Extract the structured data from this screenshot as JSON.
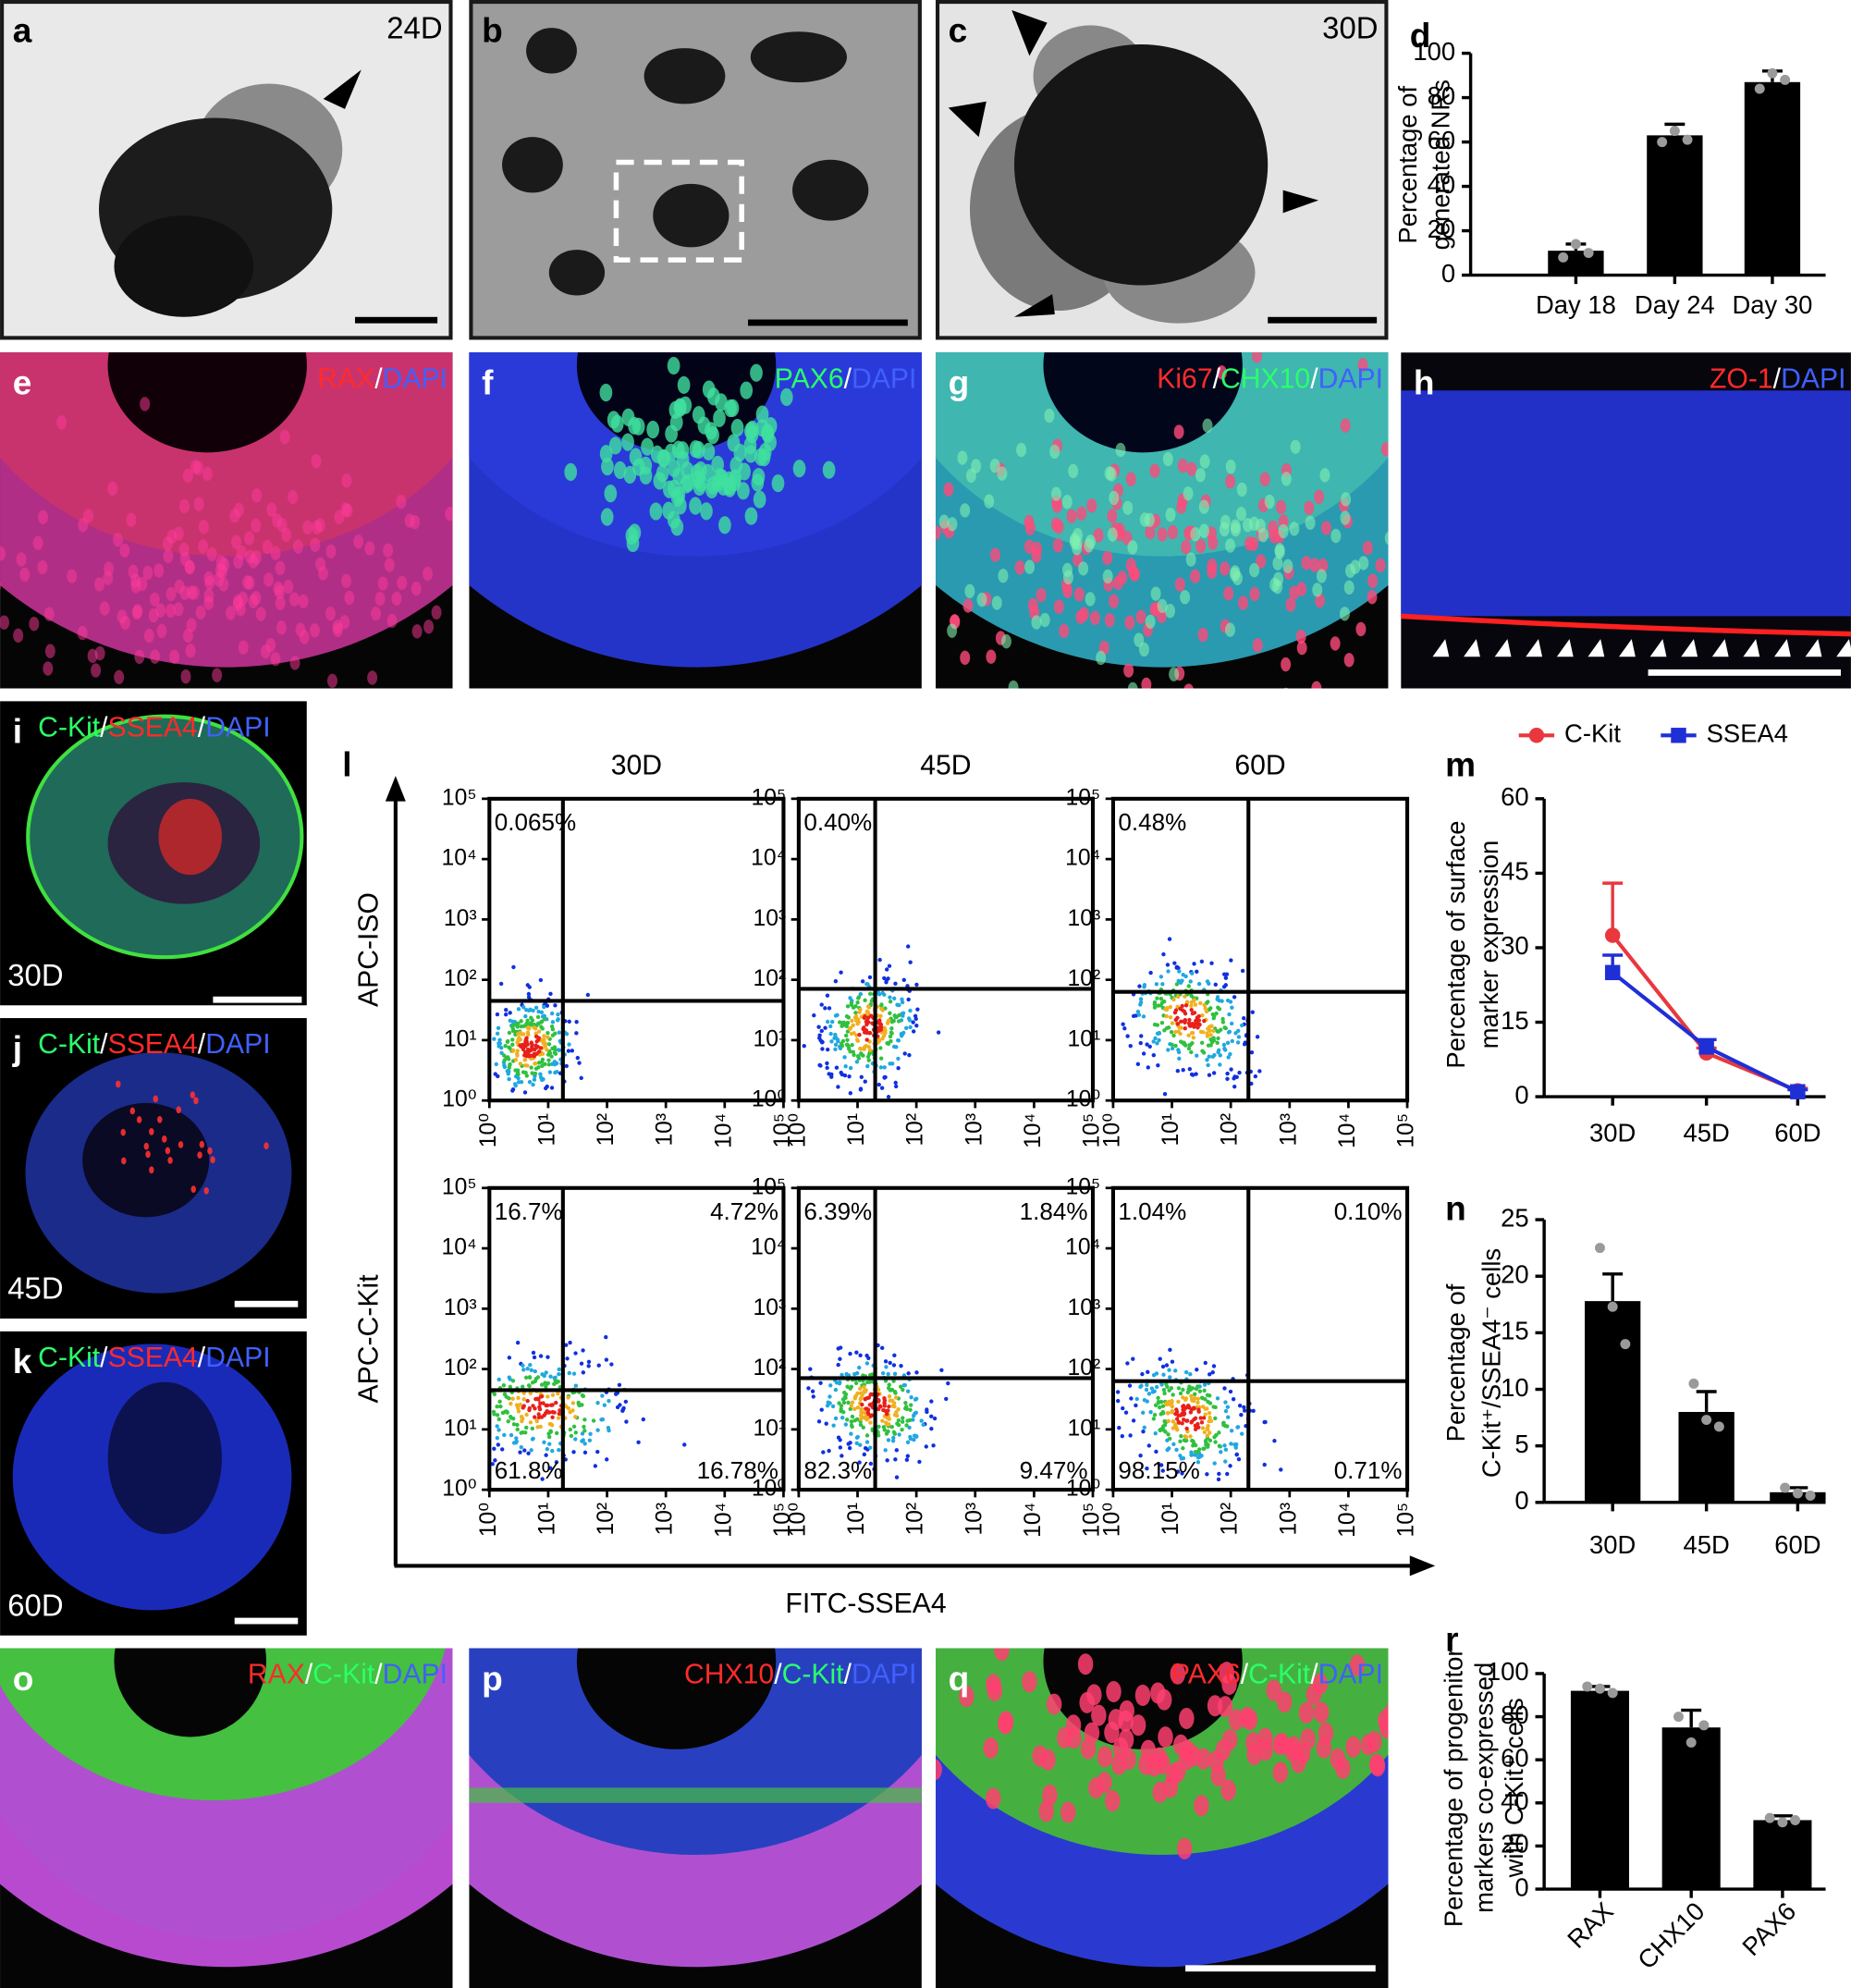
{
  "panels": [
    {
      "letter": "a",
      "day": "24D"
    },
    {
      "letter": "b"
    },
    {
      "letter": "c",
      "day": "30D"
    },
    {
      "letter": "d"
    },
    {
      "letter": "e",
      "stain": [
        {
          "text": "RAX",
          "color": "#ff2b2b"
        },
        {
          "text": "/",
          "color": "#ffffff"
        },
        {
          "text": "DAPI",
          "color": "#4060ff"
        }
      ]
    },
    {
      "letter": "f",
      "stain": [
        {
          "text": "PAX6",
          "color": "#2bff6a"
        },
        {
          "text": "/",
          "color": "#ffffff"
        },
        {
          "text": "DAPI",
          "color": "#4060ff"
        }
      ]
    },
    {
      "letter": "g",
      "stain": [
        {
          "text": "Ki67",
          "color": "#ff2b2b"
        },
        {
          "text": "/",
          "color": "#ffffff"
        },
        {
          "text": "CHX10",
          "color": "#2bff6a"
        },
        {
          "text": "/",
          "color": "#ffffff"
        },
        {
          "text": "DAPI",
          "color": "#4060ff"
        }
      ]
    },
    {
      "letter": "h",
      "stain": [
        {
          "text": "ZO-1",
          "color": "#ff2b2b"
        },
        {
          "text": "/",
          "color": "#ffffff"
        },
        {
          "text": "DAPI",
          "color": "#4060ff"
        }
      ]
    },
    {
      "letter": "i",
      "day": "30D",
      "stain": [
        {
          "text": "C-Kit",
          "color": "#2bff6a"
        },
        {
          "text": "/",
          "color": "#ffffff"
        },
        {
          "text": "SSEA4",
          "color": "#ff2b2b"
        },
        {
          "text": "/",
          "color": "#ffffff"
        },
        {
          "text": "DAPI",
          "color": "#4060ff"
        }
      ]
    },
    {
      "letter": "j",
      "day": "45D",
      "stain": [
        {
          "text": "C-Kit",
          "color": "#2bff6a"
        },
        {
          "text": "/",
          "color": "#ffffff"
        },
        {
          "text": "SSEA4",
          "color": "#ff2b2b"
        },
        {
          "text": "/",
          "color": "#ffffff"
        },
        {
          "text": "DAPI",
          "color": "#4060ff"
        }
      ]
    },
    {
      "letter": "k",
      "day": "60D",
      "stain": [
        {
          "text": "C-Kit",
          "color": "#2bff6a"
        },
        {
          "text": "/",
          "color": "#ffffff"
        },
        {
          "text": "SSEA4",
          "color": "#ff2b2b"
        },
        {
          "text": "/",
          "color": "#ffffff"
        },
        {
          "text": "DAPI",
          "color": "#4060ff"
        }
      ]
    },
    {
      "letter": "l"
    },
    {
      "letter": "m"
    },
    {
      "letter": "n"
    },
    {
      "letter": "o",
      "stain": [
        {
          "text": "RAX",
          "color": "#ff2b2b"
        },
        {
          "text": "/",
          "color": "#ffffff"
        },
        {
          "text": "C-Kit",
          "color": "#2bff6a"
        },
        {
          "text": "/",
          "color": "#ffffff"
        },
        {
          "text": "DAPI",
          "color": "#4060ff"
        }
      ]
    },
    {
      "letter": "p",
      "stain": [
        {
          "text": "CHX10",
          "color": "#ff2b2b"
        },
        {
          "text": "/",
          "color": "#ffffff"
        },
        {
          "text": "C-Kit",
          "color": "#2bff6a"
        },
        {
          "text": "/",
          "color": "#ffffff"
        },
        {
          "text": "DAPI",
          "color": "#4060ff"
        }
      ]
    },
    {
      "letter": "q",
      "stain": [
        {
          "text": "PAX6",
          "color": "#ff2b2b"
        },
        {
          "text": "/",
          "color": "#ffffff"
        },
        {
          "text": "C-Kit",
          "color": "#2bff6a"
        },
        {
          "text": "/",
          "color": "#ffffff"
        },
        {
          "text": "DAPI",
          "color": "#4060ff"
        }
      ]
    },
    {
      "letter": "r"
    }
  ],
  "flow": {
    "columns": [
      "30D",
      "45D",
      "60D"
    ],
    "rows": [
      {
        "label": "APC-ISO",
        "quadrants": [
          {
            "ul": "0.065%"
          },
          {
            "ul": "0.40%"
          },
          {
            "ul": "0.48%"
          }
        ]
      },
      {
        "label": "APC-C-Kit",
        "quadrants": [
          {
            "ul": "16.7%",
            "ur": "4.72%",
            "ll": "61.8%",
            "lr": "16.78%"
          },
          {
            "ul": "6.39%",
            "ur": "1.84%",
            "ll": "82.3%",
            "lr": "9.47%"
          },
          {
            "ul": "1.04%",
            "ur": "0.10%",
            "ll": "98.15%",
            "lr": "0.71%"
          }
        ]
      }
    ],
    "x_label": "FITC-SSEA4",
    "log": true,
    "lim": [
      1,
      100000
    ],
    "ticks": [
      {
        "value": 1,
        "label": "10⁰"
      },
      {
        "value": 10,
        "label": "10¹"
      },
      {
        "value": 100,
        "label": "10²"
      },
      {
        "value": 1000,
        "label": "10³"
      },
      {
        "value": 10000,
        "label": "10⁴"
      },
      {
        "value": 100000,
        "label": "10⁵"
      }
    ]
  },
  "chart_data": [
    {
      "type": "bar",
      "categories": [
        "Day 18",
        "Day 24",
        "Day 30"
      ],
      "values": [
        11,
        63,
        87
      ],
      "errors": [
        3,
        5,
        5
      ],
      "points": [
        [
          8,
          14,
          10
        ],
        [
          60,
          65,
          61
        ],
        [
          84,
          91,
          88
        ]
      ],
      "color": "#000000",
      "ylim": [
        0,
        100
      ],
      "yticks": [
        0,
        20,
        40,
        60,
        80,
        100
      ],
      "y_label": [
        "Percentage of",
        "generated NRs"
      ]
    },
    {
      "type": "line",
      "categories": [
        "30D",
        "45D",
        "60D"
      ],
      "series": [
        {
          "name": "C-Kit",
          "color": "#e8383d",
          "marker": "circle",
          "values": [
            32.5,
            8.8,
            1.2
          ],
          "errors": [
            10.5,
            1,
            0.5
          ]
        },
        {
          "name": "SSEA4",
          "color": "#1f2fd6",
          "marker": "square",
          "values": [
            25,
            10,
            1
          ],
          "errors": [
            3.5,
            1.5,
            0.4
          ]
        }
      ],
      "ylim": [
        0,
        60
      ],
      "yticks": [
        0,
        15,
        30,
        45,
        60
      ],
      "y_label": [
        "Percentage of surface",
        "marker expression"
      ],
      "legend": "top"
    },
    {
      "type": "bar",
      "categories": [
        "30D",
        "45D",
        "60D"
      ],
      "values": [
        17.8,
        8.0,
        0.9
      ],
      "errors": [
        2.4,
        1.8,
        0.4
      ],
      "points": [
        [
          22.5,
          17.3,
          14
        ],
        [
          10.5,
          7.3,
          6.7
        ],
        [
          1.3,
          0.8,
          0.6
        ]
      ],
      "color": "#000000",
      "ylim": [
        0,
        25
      ],
      "yticks": [
        0,
        5,
        10,
        15,
        20,
        25
      ],
      "y_label": [
        "Percentage of",
        "C-Kit⁺/SSEA4⁻ cells"
      ]
    },
    {
      "type": "bar",
      "categories": [
        "RAX",
        "CHX10",
        "PAX6"
      ],
      "values": [
        92,
        75,
        32
      ],
      "errors": [
        2,
        8,
        2
      ],
      "points": [
        [
          94,
          93,
          91
        ],
        [
          80,
          68,
          76
        ],
        [
          33,
          31,
          32
        ]
      ],
      "color": "#000000",
      "ylim": [
        0,
        100
      ],
      "yticks": [
        0,
        20,
        40,
        60,
        80,
        100
      ],
      "y_label": [
        "Percentage of progenitor",
        "markers co-expressed",
        "with C-Kit⁺ cells"
      ]
    }
  ]
}
